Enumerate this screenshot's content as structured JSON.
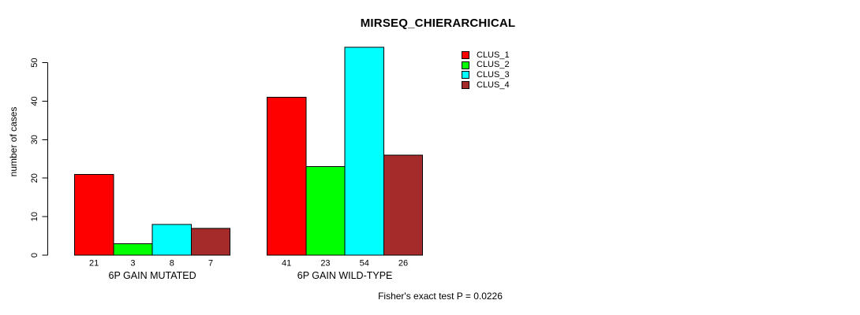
{
  "title": "MIRSEQ_CHIERARCHICAL",
  "caption": "Fisher's exact test P = 0.0226",
  "colors": {
    "background": "#FFFFFF",
    "axis": "#000000",
    "text": "#000000",
    "clus_1": "#FF0000",
    "clus_2": "#00FF00",
    "clus_3": "#00FFFF",
    "clus_4": "#A52A2A"
  },
  "chart_data": {
    "type": "bar",
    "title": "MIRSEQ_CHIERARCHICAL",
    "categories": [
      "6P GAIN MUTATED",
      "6P GAIN WILD-TYPE"
    ],
    "series": [
      {
        "name": "CLUS_1",
        "color": "#FF0000",
        "values": [
          21,
          41
        ]
      },
      {
        "name": "CLUS_2",
        "color": "#00FF00",
        "values": [
          3,
          23
        ]
      },
      {
        "name": "CLUS_3",
        "color": "#00FFFF",
        "values": [
          8,
          54
        ]
      },
      {
        "name": "CLUS_4",
        "color": "#A52A2A",
        "values": [
          7,
          26
        ]
      }
    ],
    "xlabel": "",
    "ylabel": "number of cases",
    "ylim": [
      0,
      50
    ],
    "yticks": [
      "0",
      "10",
      "20",
      "30",
      "40",
      "50"
    ],
    "grid": false,
    "bar_value_labels": true,
    "legend_position": "top-right",
    "annotation": "Fisher's exact test P = 0.0226"
  }
}
